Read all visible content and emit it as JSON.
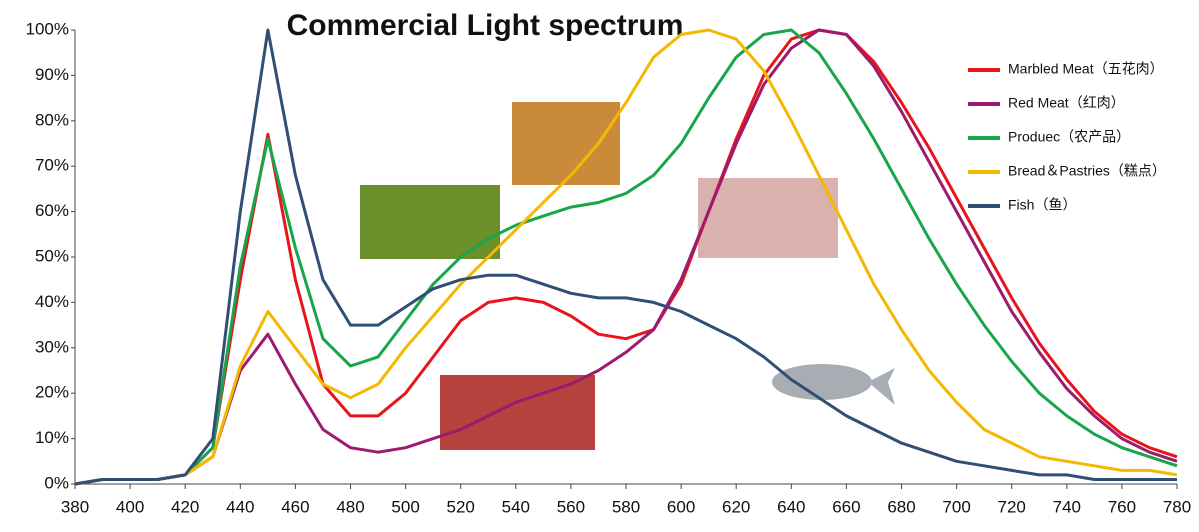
{
  "chart_data": {
    "type": "line",
    "title": "Commercial Light spectrum",
    "x": [
      380,
      390,
      400,
      410,
      420,
      430,
      440,
      450,
      460,
      470,
      480,
      490,
      500,
      510,
      520,
      530,
      540,
      550,
      560,
      570,
      580,
      590,
      600,
      610,
      620,
      630,
      640,
      650,
      660,
      670,
      680,
      690,
      700,
      710,
      720,
      730,
      740,
      750,
      760,
      770,
      780
    ],
    "series": [
      {
        "name": "Marbled Meat（五花肉）",
        "color": "#e8141c",
        "values": [
          0,
          1,
          1,
          1,
          2,
          8,
          45,
          77,
          45,
          22,
          15,
          15,
          20,
          28,
          36,
          40,
          41,
          40,
          37,
          33,
          32,
          34,
          44,
          60,
          76,
          90,
          98,
          100,
          99,
          93,
          84,
          74,
          63,
          52,
          41,
          31,
          23,
          16,
          11,
          8,
          6
        ]
      },
      {
        "name": "Red Meat（红肉）",
        "color": "#9c1b6e",
        "values": [
          0,
          1,
          1,
          1,
          2,
          6,
          25,
          33,
          22,
          12,
          8,
          7,
          8,
          10,
          12,
          15,
          18,
          20,
          22,
          25,
          29,
          34,
          45,
          60,
          75,
          88,
          96,
          100,
          99,
          92,
          82,
          71,
          60,
          49,
          38,
          29,
          21,
          15,
          10,
          7,
          5
        ]
      },
      {
        "name": "Produec（农产品）",
        "color": "#18a64a",
        "values": [
          0,
          1,
          1,
          1,
          2,
          8,
          48,
          76,
          52,
          32,
          26,
          28,
          36,
          44,
          50,
          54,
          57,
          59,
          61,
          62,
          64,
          68,
          75,
          85,
          94,
          99,
          100,
          95,
          86,
          76,
          65,
          54,
          44,
          35,
          27,
          20,
          15,
          11,
          8,
          6,
          4
        ]
      },
      {
        "name": "Bread＆Pastries（糕点）",
        "color": "#f5b800",
        "values": [
          0,
          1,
          1,
          1,
          2,
          6,
          26,
          38,
          30,
          22,
          19,
          22,
          30,
          37,
          44,
          50,
          56,
          62,
          68,
          75,
          84,
          94,
          99,
          100,
          98,
          91,
          80,
          68,
          56,
          44,
          34,
          25,
          18,
          12,
          9,
          6,
          5,
          4,
          3,
          3,
          2
        ]
      },
      {
        "name": "Fish（鱼）",
        "color": "#2f4f74",
        "values": [
          0,
          1,
          1,
          1,
          2,
          10,
          60,
          100,
          68,
          45,
          35,
          35,
          39,
          43,
          45,
          46,
          46,
          44,
          42,
          41,
          41,
          40,
          38,
          35,
          32,
          28,
          23,
          19,
          15,
          12,
          9,
          7,
          5,
          4,
          3,
          2,
          2,
          1,
          1,
          1,
          1
        ]
      }
    ],
    "xlim": [
      380,
      780
    ],
    "xticks": [
      380,
      400,
      420,
      440,
      460,
      480,
      500,
      520,
      540,
      560,
      580,
      600,
      620,
      640,
      660,
      680,
      700,
      720,
      740,
      760,
      780
    ],
    "ylim": [
      0,
      100
    ],
    "yticks": [
      {
        "value": 0,
        "label": "0%"
      },
      {
        "value": 10,
        "label": "10%"
      },
      {
        "value": 20,
        "label": "20%"
      },
      {
        "value": 30,
        "label": "30%"
      },
      {
        "value": 40,
        "label": "40%"
      },
      {
        "value": 50,
        "label": "50%"
      },
      {
        "value": 60,
        "label": "60%"
      },
      {
        "value": 70,
        "label": "70%"
      },
      {
        "value": 80,
        "label": "80%"
      },
      {
        "value": 90,
        "label": "90%"
      },
      {
        "value": 100,
        "label": "100%"
      }
    ],
    "legend": "top-right"
  }
}
